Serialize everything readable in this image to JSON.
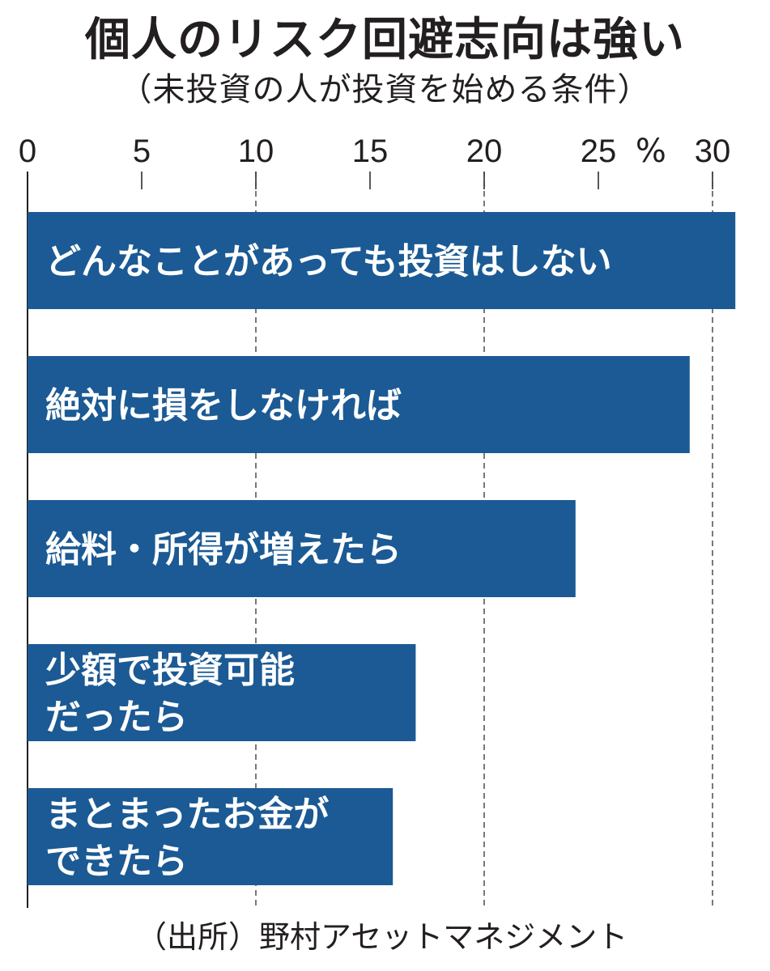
{
  "title": "個人のリスク回避志向は強い",
  "subtitle": "（未投資の人が投資を始める条件）",
  "source": "（出所）野村アセットマネジメント",
  "chart_data": {
    "type": "bar",
    "orientation": "horizontal",
    "categories": [
      [
        "どんなことがあっても投資はしない"
      ],
      [
        "絶対に損をしなければ"
      ],
      [
        "給料・所得が増えたら"
      ],
      [
        "少額で投資可能",
        "だったら"
      ],
      [
        "まとまったお金が",
        "できたら"
      ]
    ],
    "values": [
      31.0,
      29.0,
      24.0,
      17.0,
      16.0
    ],
    "xlim": [
      0,
      31
    ],
    "xticks": [
      0,
      5,
      10,
      15,
      20,
      25,
      30
    ],
    "xunit": "%",
    "grid": "dashed-vertical",
    "bar_color": "#1b5a94",
    "label_color": "#ffffff"
  }
}
